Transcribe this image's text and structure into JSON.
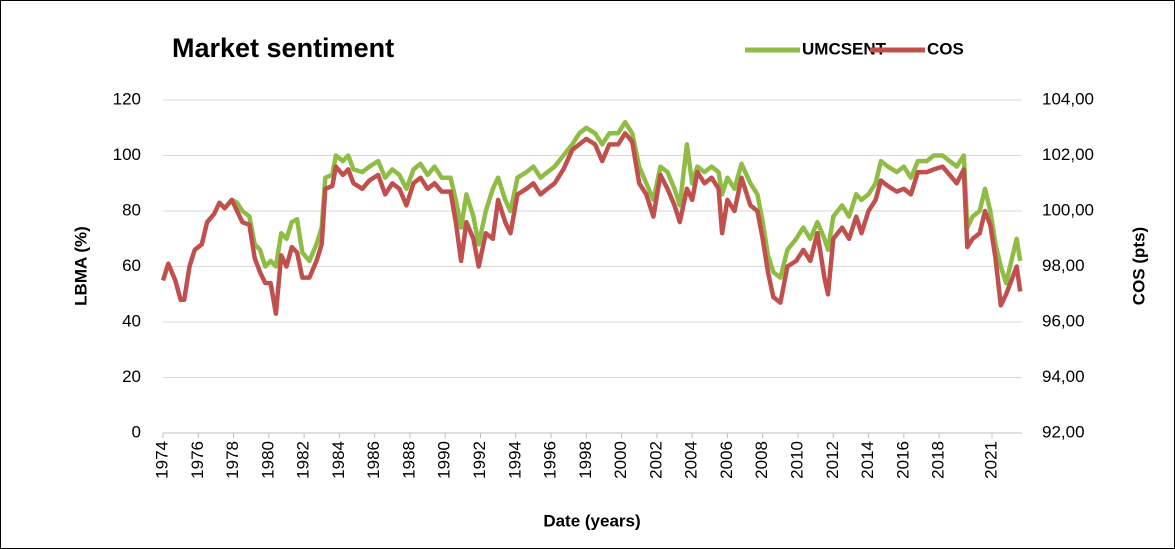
{
  "chart_data": {
    "type": "line",
    "title": "Market sentiment",
    "x_label": "Date (years)",
    "y_label": "LBMA (%)",
    "y2_label": "COS (pts)",
    "x": [
      1974,
      1974.3,
      1974.7,
      1975,
      1975.2,
      1975.5,
      1975.8,
      1976.2,
      1976.5,
      1976.9,
      1977.2,
      1977.5,
      1977.9,
      1978.2,
      1978.5,
      1978.9,
      1979.2,
      1979.5,
      1979.8,
      1980.1,
      1980.4,
      1980.7,
      1981,
      1981.3,
      1981.6,
      1981.9,
      1982.3,
      1982.7,
      1983,
      1983.2,
      1983.6,
      1983.8,
      1984.2,
      1984.5,
      1984.8,
      1985.3,
      1985.7,
      1986.2,
      1986.6,
      1987,
      1987.4,
      1987.8,
      1988.2,
      1988.6,
      1989,
      1989.4,
      1989.8,
      1990.3,
      1990.6,
      1990.9,
      1991.2,
      1991.6,
      1991.9,
      1992.3,
      1992.7,
      1993,
      1993.4,
      1993.7,
      1994.1,
      1994.6,
      1995,
      1995.4,
      1995.8,
      1996.2,
      1996.7,
      1997.2,
      1997.6,
      1998,
      1998.5,
      1998.9,
      1999.3,
      1999.8,
      2000.2,
      2000.6,
      2001,
      2001.4,
      2001.8,
      2002.2,
      2002.6,
      2003,
      2003.3,
      2003.7,
      2004,
      2004.3,
      2004.7,
      2005.1,
      2005.5,
      2005.7,
      2006,
      2006.4,
      2006.8,
      2007.3,
      2007.7,
      2008,
      2008.3,
      2008.6,
      2009,
      2009.4,
      2009.9,
      2010.3,
      2010.7,
      2011.1,
      2011.5,
      2011.7,
      2012,
      2012.5,
      2012.9,
      2013.3,
      2013.6,
      2014,
      2014.4,
      2014.7,
      2015.1,
      2015.6,
      2016,
      2016.4,
      2016.8,
      2017.3,
      2017.7,
      2018.2,
      2018.6,
      2019,
      2019.4,
      2019.6,
      2019.9,
      2020.3,
      2020.6,
      2020.9,
      2021.2,
      2021.5,
      2021.8,
      2022.1,
      2022.4,
      2022.6
    ],
    "series": [
      {
        "name": "UMCSENT",
        "color": "#8fbc45",
        "axis": "y",
        "values": [
          null,
          null,
          null,
          null,
          null,
          null,
          null,
          null,
          null,
          null,
          null,
          null,
          84,
          83,
          80,
          78,
          68,
          66,
          60,
          62,
          60,
          72,
          70,
          76,
          77,
          65,
          62,
          68,
          74,
          92,
          93,
          100,
          98,
          100,
          95,
          94,
          96,
          98,
          92,
          95,
          93,
          88,
          95,
          97,
          93,
          96,
          92,
          92,
          84,
          74,
          86,
          78,
          68,
          80,
          88,
          92,
          84,
          80,
          92,
          94,
          96,
          92,
          94,
          96,
          100,
          104,
          108,
          110,
          108,
          104,
          108,
          108,
          112,
          108,
          96,
          90,
          84,
          96,
          94,
          88,
          82,
          104,
          90,
          96,
          94,
          96,
          94,
          86,
          92,
          88,
          97,
          90,
          86,
          76,
          64,
          58,
          56,
          66,
          70,
          74,
          70,
          76,
          70,
          66,
          78,
          82,
          78,
          86,
          84,
          86,
          90,
          98,
          96,
          94,
          96,
          92,
          98,
          98,
          100,
          100,
          98,
          96,
          100,
          74,
          78,
          80,
          88,
          80,
          68,
          60,
          54,
          62,
          70,
          62
        ]
      },
      {
        "name": "COS",
        "color": "#c0504d",
        "axis": "y2",
        "values": [
          97.5,
          98.1,
          97.5,
          96.8,
          96.8,
          98.0,
          98.6,
          98.8,
          99.6,
          99.9,
          100.3,
          100.1,
          100.4,
          100.0,
          99.6,
          99.5,
          98.3,
          97.8,
          97.4,
          97.4,
          96.3,
          98.4,
          98.0,
          98.7,
          98.5,
          97.6,
          97.6,
          98.2,
          98.8,
          100.8,
          100.9,
          101.6,
          101.3,
          101.5,
          101.0,
          100.8,
          101.1,
          101.3,
          100.6,
          101.0,
          100.8,
          100.2,
          101.0,
          101.2,
          100.8,
          101.0,
          100.7,
          100.7,
          99.6,
          98.2,
          99.6,
          99.0,
          98.0,
          99.2,
          99.0,
          100.4,
          99.6,
          99.2,
          100.6,
          100.8,
          101.0,
          100.6,
          100.8,
          101.0,
          101.5,
          102.2,
          102.4,
          102.6,
          102.4,
          101.8,
          102.4,
          102.4,
          102.8,
          102.5,
          101.0,
          100.6,
          99.8,
          101.3,
          100.8,
          100.2,
          99.6,
          100.8,
          100.4,
          101.4,
          101.0,
          101.2,
          100.8,
          99.2,
          100.4,
          100.0,
          101.2,
          100.2,
          100.0,
          99.0,
          97.8,
          96.9,
          96.7,
          98.0,
          98.2,
          98.6,
          98.2,
          99.2,
          97.6,
          97.0,
          99.0,
          99.4,
          99.0,
          99.8,
          99.2,
          100.0,
          100.4,
          101.1,
          100.9,
          100.7,
          100.8,
          100.6,
          101.4,
          101.4,
          101.5,
          101.6,
          101.3,
          101.0,
          101.5,
          98.7,
          99.0,
          99.2,
          100.0,
          99.5,
          98.3,
          96.6,
          97.0,
          97.5,
          98.0,
          97.1
        ]
      }
    ],
    "xlim": [
      1974,
      2022.7
    ],
    "xticks": [
      1974,
      1976,
      1978,
      1980,
      1982,
      1984,
      1986,
      1988,
      1990,
      1992,
      1994,
      1996,
      1998,
      2000,
      2002,
      2004,
      2006,
      2008,
      2010,
      2012,
      2014,
      2016,
      2018,
      2021
    ],
    "ylim": [
      0,
      120
    ],
    "yticks": [
      0,
      20,
      40,
      60,
      80,
      100,
      120
    ],
    "y2lim": [
      92,
      104
    ],
    "y2ticks": [
      {
        "value": 92,
        "label": "92,00"
      },
      {
        "value": 94,
        "label": "94,00"
      },
      {
        "value": 96,
        "label": "96,00"
      },
      {
        "value": 98,
        "label": "98,00"
      },
      {
        "value": 100,
        "label": "100,00"
      },
      {
        "value": 102,
        "label": "102,00"
      },
      {
        "value": 104,
        "label": "104,00"
      }
    ],
    "grid": true,
    "legend": "top-right"
  }
}
